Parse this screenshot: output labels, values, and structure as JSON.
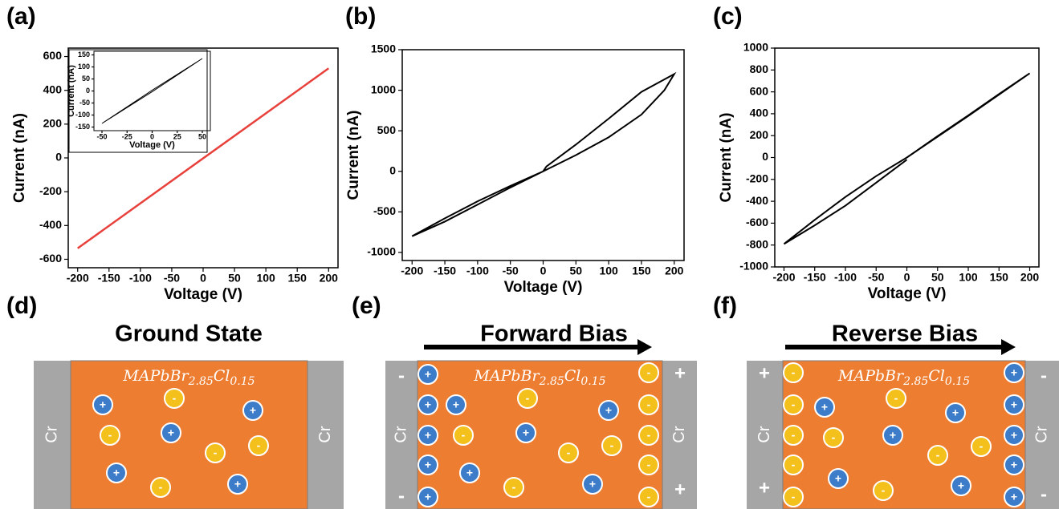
{
  "chart_data": [
    {
      "type": "line",
      "label": "(a)",
      "x_label": "Voltage (V)",
      "y_label": "Current (nA)",
      "xlim": [
        -215,
        215
      ],
      "ylim": [
        -650,
        650
      ],
      "xticks": [
        -200,
        -150,
        -100,
        -50,
        0,
        50,
        100,
        150,
        200
      ],
      "yticks": [
        -600,
        -400,
        -200,
        0,
        200,
        400,
        600
      ],
      "series": [
        {
          "color": "#e8413c",
          "x": [
            -200,
            200
          ],
          "values": [
            -535,
            530
          ]
        }
      ],
      "inset": {
        "x_label": "Voltage (V)",
        "y_label": "Current (nA)",
        "xlim": [
          -58,
          58
        ],
        "ylim": [
          -165,
          165
        ],
        "xticks": [
          -50,
          -25,
          0,
          25,
          50
        ],
        "yticks": [
          -150,
          -100,
          -50,
          0,
          50,
          100,
          150
        ],
        "series": [
          {
            "color": "#000000",
            "x": [
              -50,
              0,
              50,
              0,
              -50
            ],
            "values": [
              -135,
              -3,
              135,
              3,
              -135
            ]
          }
        ]
      }
    },
    {
      "type": "line",
      "label": "(b)",
      "x_label": "Voltage (V)",
      "y_label": "Current (nA)",
      "xlim": [
        -215,
        215
      ],
      "ylim": [
        -1100,
        1500
      ],
      "xticks": [
        -200,
        -150,
        -100,
        -50,
        0,
        50,
        100,
        150,
        200
      ],
      "yticks": [
        -1000,
        -500,
        0,
        500,
        1000,
        1500
      ],
      "series": [
        {
          "color": "#000000",
          "x": [
            0,
            5,
            50,
            100,
            150,
            200,
            185,
            150,
            100,
            50,
            0,
            -50,
            -100,
            -150,
            -200,
            -150,
            -100,
            -50,
            0
          ],
          "values": [
            0,
            60,
            330,
            650,
            980,
            1200,
            1000,
            700,
            420,
            200,
            0,
            -180,
            -370,
            -580,
            -800,
            -620,
            -410,
            -200,
            0
          ]
        }
      ]
    },
    {
      "type": "line",
      "label": "(c)",
      "x_label": "Voltage (V)",
      "y_label": "Current (nA)",
      "xlim": [
        -215,
        215
      ],
      "ylim": [
        -1000,
        1000
      ],
      "xticks": [
        -200,
        -150,
        -100,
        -50,
        0,
        50,
        100,
        150,
        200
      ],
      "yticks": [
        -1000,
        -800,
        -600,
        -400,
        -200,
        0,
        200,
        400,
        600,
        800,
        1000
      ],
      "series": [
        {
          "color": "#000000",
          "x": [
            0,
            50,
            100,
            150,
            200,
            150,
            100,
            50,
            0,
            -50,
            -100,
            -150,
            -200,
            -150,
            -100,
            -50,
            0
          ],
          "values": [
            0,
            190,
            380,
            575,
            770,
            580,
            385,
            195,
            0,
            -170,
            -360,
            -570,
            -790,
            -620,
            -440,
            -230,
            -20
          ]
        }
      ]
    }
  ],
  "diagrams": [
    {
      "label": "(d)",
      "heading": "Ground State",
      "formula": [
        "MAPbBr",
        "2.85",
        "Cl",
        "0.15"
      ],
      "electrode": "Cr",
      "cation": "+",
      "anion": "-"
    },
    {
      "label": "(e)",
      "heading": "Forward Bias",
      "formula": [
        "MAPbBr",
        "2.85",
        "Cl",
        "0.15"
      ],
      "electrode": "Cr",
      "cation": "+",
      "anion": "-"
    },
    {
      "label": "(f)",
      "heading": "Reverse Bias",
      "formula": [
        "MAPbBr",
        "2.85",
        "Cl",
        "0.15"
      ],
      "electrode": "Cr",
      "cation": "+",
      "anion": "-"
    }
  ]
}
